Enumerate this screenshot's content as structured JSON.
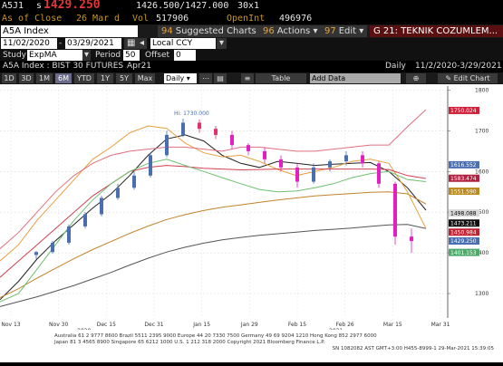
{
  "quote": {
    "ticker": "A5J1",
    "last_prefix": "s",
    "last": "1429.250",
    "bid_ask": "1426.500/1427.000",
    "size": "30x1",
    "close_label": "As of Close",
    "close_date": "26 Mar",
    "close_flag": "d",
    "vol_label": "Vol",
    "vol": "517906",
    "openint_label": "OpenInt",
    "openint": "496976"
  },
  "toolbar": {
    "ticker_value": "A5A Index",
    "suggested_num": "94",
    "suggested_label": "Suggested Charts",
    "actions_num": "96",
    "actions_label": "Actions",
    "edit_num": "97",
    "edit_label": "Edit",
    "window_title": "G 21: TEKNIK COZUMLEM..."
  },
  "range": {
    "start": "11/02/2020",
    "end": "03/29/2021",
    "currency": "Local CCY"
  },
  "study": {
    "label": "Study",
    "value": "ExpMA",
    "period_label": "Period",
    "period": "50",
    "offset_label": "Offset",
    "offset": "0"
  },
  "security": {
    "name": "A5A Index : BIST 30 FUTURES",
    "contract": "Apr21",
    "frequency": "Daily",
    "range_label": "11/2/2020-3/29/2021"
  },
  "periods": [
    "1D",
    "3D",
    "1M",
    "6M",
    "YTD",
    "1Y",
    "5Y",
    "Max"
  ],
  "active_period": "6M",
  "bottom_toolbar": {
    "freq": "Daily",
    "table_label": "Table",
    "add_data_label": "Add Data",
    "edit_chart_label": "Edit Chart"
  },
  "chart_data": {
    "type": "line",
    "x_tick_labels": [
      "Nov 13",
      "Nov 30",
      "Dec 15",
      "Dec 31",
      "Jan 15",
      "Jan 29",
      "Feb 15",
      "Feb 26",
      "Mar 15",
      "Mar 31"
    ],
    "year_labels": [
      "2020",
      "2021"
    ],
    "y_ticks": [
      1300,
      1400,
      1500,
      1600,
      1700,
      1800
    ],
    "ylim": [
      1240,
      1810
    ],
    "high_annotation": "Hi: 1730.000",
    "price_labels": [
      {
        "value": "1750.024",
        "color": "#d0203a"
      },
      {
        "value": "1616.552",
        "color": "#4a6fb0"
      },
      {
        "value": "1583.474",
        "color": "#b02040"
      },
      {
        "value": "1551.590",
        "color": "#b88a20"
      },
      {
        "value": "1498.088",
        "color": "#d8d8d8"
      },
      {
        "value": "1473.211",
        "color": "#111111"
      },
      {
        "value": "1450.984",
        "color": "#c02030"
      },
      {
        "value": "1429.250",
        "color": "#4a6fb0"
      },
      {
        "value": "1401.153",
        "color": "#4caa6a"
      }
    ],
    "series": [
      {
        "color": "#222222",
        "values": [
          1285,
          1330,
          1385,
          1430,
          1470,
          1510,
          1545,
          1590,
          1640,
          1680,
          1690,
          1675,
          1640,
          1620,
          1610,
          1625,
          1620,
          1615,
          1618,
          1620,
          1622,
          1600,
          1560,
          1505
        ]
      },
      {
        "color": "#555555",
        "values": [
          1268,
          1280,
          1292,
          1306,
          1320,
          1336,
          1352,
          1370,
          1387,
          1402,
          1414,
          1424,
          1432,
          1438,
          1443,
          1447,
          1451,
          1455,
          1458,
          1461,
          1465,
          1469,
          1470,
          1460
        ]
      },
      {
        "color": "#c0842a",
        "values": [
          1290,
          1312,
          1338,
          1362,
          1386,
          1408,
          1428,
          1448,
          1466,
          1482,
          1494,
          1504,
          1512,
          1518,
          1524,
          1530,
          1535,
          1540,
          1543,
          1546,
          1549,
          1550,
          1545,
          1520
        ]
      },
      {
        "color": "#e8a040",
        "values": [
          1380,
          1420,
          1480,
          1530,
          1580,
          1630,
          1660,
          1695,
          1712,
          1706,
          1670,
          1646,
          1636,
          1640,
          1625,
          1605,
          1590,
          1600,
          1610,
          1625,
          1630,
          1620,
          1550,
          1460
        ]
      },
      {
        "color": "#e07080",
        "values": [
          1410,
          1450,
          1500,
          1550,
          1590,
          1620,
          1640,
          1650,
          1655,
          1660,
          1660,
          1655,
          1650,
          1660,
          1660,
          1655,
          1650,
          1650,
          1655,
          1660,
          1665,
          1665,
          1710,
          1752
        ]
      },
      {
        "color": "#d04050",
        "values": [
          1340,
          1380,
          1420,
          1460,
          1500,
          1540,
          1570,
          1600,
          1610,
          1615,
          1612,
          1608,
          1606,
          1604,
          1605,
          1606,
          1606,
          1606,
          1606,
          1606,
          1606,
          1605,
          1590,
          1583
        ]
      },
      {
        "color": "#6fbf6f",
        "values": [
          1280,
          1300,
          1360,
          1420,
          1480,
          1530,
          1570,
          1600,
          1620,
          1630,
          1615,
          1600,
          1585,
          1570,
          1556,
          1550,
          1552,
          1560,
          1570,
          1585,
          1595,
          1600,
          1580,
          1575
        ]
      }
    ],
    "candles": [
      {
        "o": 1395,
        "h": 1405,
        "l": 1385,
        "c": 1402
      },
      {
        "o": 1402,
        "h": 1430,
        "l": 1398,
        "c": 1425
      },
      {
        "o": 1425,
        "h": 1470,
        "l": 1420,
        "c": 1465
      },
      {
        "o": 1465,
        "h": 1500,
        "l": 1460,
        "c": 1495
      },
      {
        "o": 1495,
        "h": 1540,
        "l": 1490,
        "c": 1535
      },
      {
        "o": 1535,
        "h": 1570,
        "l": 1530,
        "c": 1560
      },
      {
        "o": 1560,
        "h": 1600,
        "l": 1555,
        "c": 1590
      },
      {
        "o": 1590,
        "h": 1645,
        "l": 1585,
        "c": 1640
      },
      {
        "o": 1640,
        "h": 1700,
        "l": 1635,
        "c": 1690
      },
      {
        "o": 1690,
        "h": 1730,
        "l": 1685,
        "c": 1720
      },
      {
        "o": 1720,
        "h": 1728,
        "l": 1695,
        "c": 1705
      },
      {
        "o": 1705,
        "h": 1712,
        "l": 1680,
        "c": 1690
      },
      {
        "o": 1690,
        "h": 1700,
        "l": 1655,
        "c": 1665
      },
      {
        "o": 1665,
        "h": 1670,
        "l": 1640,
        "c": 1650
      },
      {
        "o": 1650,
        "h": 1660,
        "l": 1620,
        "c": 1630
      },
      {
        "o": 1630,
        "h": 1640,
        "l": 1600,
        "c": 1610
      },
      {
        "o": 1610,
        "h": 1620,
        "l": 1560,
        "c": 1575
      },
      {
        "o": 1575,
        "h": 1620,
        "l": 1570,
        "c": 1610
      },
      {
        "o": 1610,
        "h": 1630,
        "l": 1600,
        "c": 1625
      },
      {
        "o": 1625,
        "h": 1650,
        "l": 1615,
        "c": 1640
      },
      {
        "o": 1640,
        "h": 1650,
        "l": 1610,
        "c": 1620
      },
      {
        "o": 1620,
        "h": 1625,
        "l": 1560,
        "c": 1570
      },
      {
        "o": 1570,
        "h": 1575,
        "l": 1420,
        "c": 1440
      },
      {
        "o": 1440,
        "h": 1460,
        "l": 1400,
        "c": 1429
      }
    ],
    "footer_lines": [
      "Australia 61 2 9777 8600  Brazil 5511 2395 9000  Europe 44 20 7330 7500  Germany 49 69 9204 1210  Hong Kong 852 2977 6000",
      "Japan 81 3 4565 8900        Singapore 65 6212 1000        U.S. 1 212 318 2000        Copyright 2021 Bloomberg Finance L.P.",
      "SN 1082082 AST  GMT+3:00 H455-8999-1 29-Mar-2021 15:39:05"
    ]
  }
}
